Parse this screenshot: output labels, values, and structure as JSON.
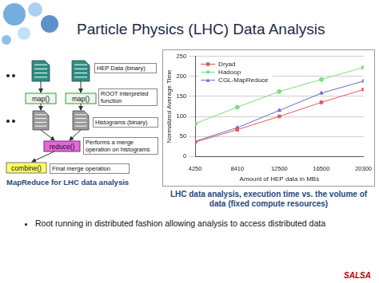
{
  "title": "Particle Physics (LHC) Data Analysis",
  "diagram": {
    "input": "HEP Data (binary)",
    "map": [
      "map()",
      "map()"
    ],
    "map_note": "ROOT interpreted function",
    "histograms": "Histograms (binary)",
    "reduce": "reduce()",
    "reduce_note": "Performs a merge operation on histograms",
    "combine": "combine()",
    "combine_note": "Final merge operation",
    "caption": "MapReduce for LHC data analysis"
  },
  "chart_caption": "LHC data analysis, execution time vs. the volume of data (fixed compute resources)",
  "bullets": [
    "Root running in distributed fashion allowing analysis to access distributed data"
  ],
  "logo": "SALSA",
  "chart_data": {
    "type": "line",
    "x_label": "Amount of HEP data in MBs",
    "y_label": "Normalized Average Time",
    "categories": [
      "4250",
      "8410",
      "12500",
      "16500",
      "20300"
    ],
    "series": [
      {
        "name": "Dryad",
        "color": "#e05a5a",
        "marker": "square",
        "values": [
          36,
          67,
          100,
          135,
          167
        ]
      },
      {
        "name": "Hadoop",
        "color": "#7fdc7f",
        "marker": "circle",
        "values": [
          82,
          123,
          162,
          192,
          222
        ]
      },
      {
        "name": "CGL-MapReduce",
        "color": "#6a6acc",
        "marker": "triangle",
        "values": [
          38,
          72,
          115,
          158,
          188
        ]
      }
    ],
    "ylim": [
      0,
      250
    ],
    "yticks": [
      0,
      50,
      100,
      150,
      200,
      250
    ],
    "grid": true,
    "legend": "upper left"
  }
}
